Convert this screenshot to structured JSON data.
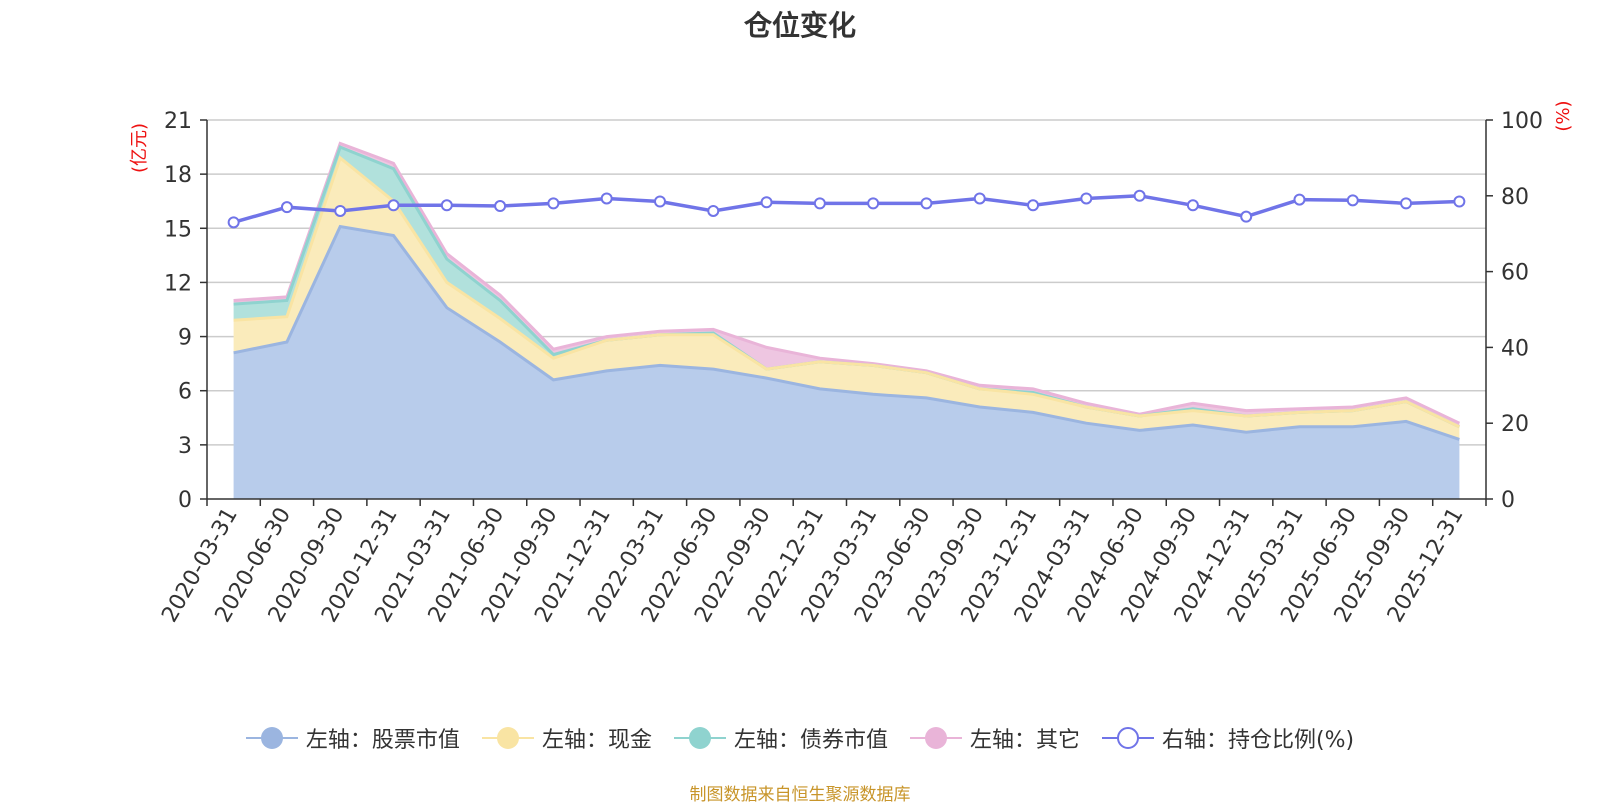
{
  "chart_data": {
    "type": "area",
    "title": "仓位变化",
    "categories": [
      "2020-03-31",
      "2020-06-30",
      "2020-09-30",
      "2020-12-31",
      "2021-03-31",
      "2021-06-30",
      "2021-09-30",
      "2021-12-31",
      "2022-03-31",
      "2022-06-30",
      "2022-09-30",
      "2022-12-31",
      "2023-03-31",
      "2023-06-30",
      "2023-09-30",
      "2023-12-31",
      "2024-03-31",
      "2024-06-30",
      "2024-09-30",
      "2024-12-31",
      "2025-03-31",
      "2025-06-30",
      "2025-09-30",
      "2025-12-31"
    ],
    "left_axis": {
      "label": "(亿元)",
      "ticks": [
        "0",
        "3",
        "6",
        "9",
        "12",
        "15",
        "18",
        "21"
      ],
      "ylim": [
        0,
        21
      ]
    },
    "right_axis": {
      "label": "(%)",
      "ticks": [
        "0",
        "20",
        "40",
        "60",
        "80",
        "100"
      ],
      "ylim": [
        0,
        100
      ]
    },
    "stacked_series": [
      {
        "name": "左轴：股票市值",
        "color": "#9bb5e0",
        "fill": "#b8cceb",
        "values": [
          8.1,
          8.7,
          15.1,
          14.6,
          10.6,
          8.7,
          6.6,
          7.1,
          7.4,
          7.2,
          6.7,
          6.1,
          5.8,
          5.6,
          5.1,
          4.8,
          4.2,
          3.8,
          4.1,
          3.7,
          4.0,
          4.0,
          4.3,
          3.3
        ]
      },
      {
        "name": "左轴：现金",
        "color": "#f9e4a3",
        "fill": "#faebbb",
        "values": [
          1.8,
          1.4,
          3.8,
          1.9,
          1.4,
          1.3,
          1.2,
          1.7,
          1.7,
          1.9,
          0.5,
          1.5,
          1.6,
          1.4,
          1.0,
          1.0,
          0.9,
          0.8,
          0.8,
          0.9,
          0.8,
          0.9,
          1.1,
          0.7
        ]
      },
      {
        "name": "左轴：债券市值",
        "color": "#8fd3cf",
        "fill": "#b1e1dc",
        "values": [
          0.9,
          0.9,
          0.6,
          1.8,
          1.3,
          1.0,
          0.2,
          0.0,
          0.0,
          0.1,
          0.0,
          0.0,
          0.0,
          0.0,
          0.0,
          0.1,
          0.0,
          0.0,
          0.1,
          0.0,
          0.0,
          0.0,
          0.0,
          0.0
        ]
      },
      {
        "name": "左轴：其它",
        "color": "#e9b4d8",
        "fill": "#eec6e1",
        "values": [
          0.2,
          0.2,
          0.2,
          0.3,
          0.3,
          0.3,
          0.3,
          0.2,
          0.2,
          0.2,
          1.2,
          0.2,
          0.1,
          0.1,
          0.2,
          0.2,
          0.2,
          0.1,
          0.3,
          0.3,
          0.2,
          0.2,
          0.2,
          0.2
        ]
      }
    ],
    "line_series": {
      "name": "右轴：持仓比例(%)",
      "color": "#7074e8",
      "values": [
        73,
        77,
        76,
        77.5,
        77.5,
        77.3,
        78,
        79.3,
        78.5,
        76,
        78.3,
        78,
        78,
        78,
        79.3,
        77.5,
        79.3,
        80,
        77.5,
        74.5,
        79,
        78.8,
        78,
        78.5
      ]
    },
    "grid": true,
    "legend_position": "bottom"
  },
  "source_note": "制图数据来自恒生聚源数据库"
}
